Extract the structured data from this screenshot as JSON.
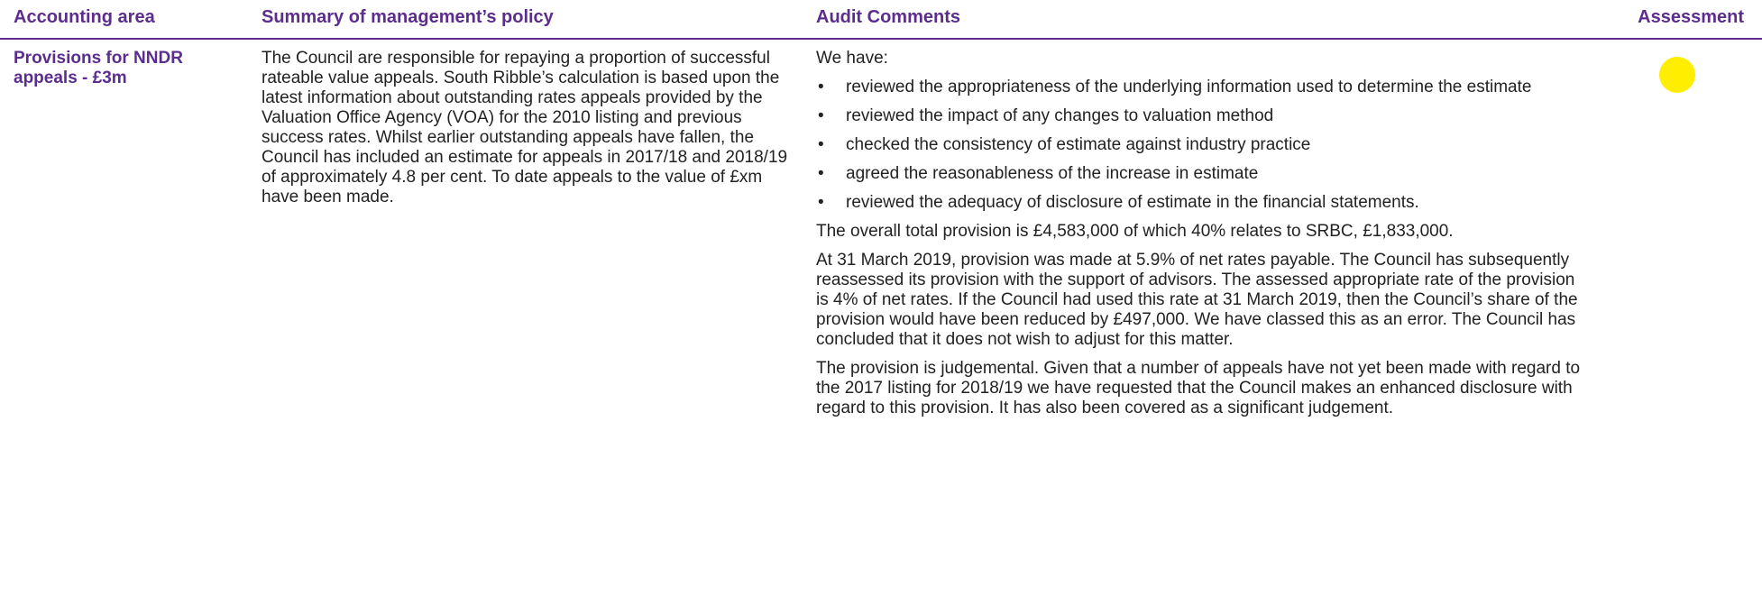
{
  "header": {
    "columns": [
      "Accounting area",
      "Summary of management’s policy",
      "Audit Comments",
      "Assessment"
    ]
  },
  "row": {
    "accounting_area": "Provisions for NNDR appeals - £3m",
    "policy": "The Council are responsible for repaying a proportion of successful rateable value appeals. South Ribble’s calculation is based upon the latest information about outstanding rates appeals provided by the Valuation Office Agency (VOA) for the 2010 listing and previous success rates. Whilst earlier outstanding appeals have fallen, the Council has included an estimate for appeals in 2017/18 and 2018/19 of approximately 4.8 per cent. To date appeals to the value of £xm have been made.",
    "audit_intro": "We have:",
    "audit_bullets": [
      "reviewed the appropriateness of the underlying information used to determine the estimate",
      "reviewed the impact of any changes to valuation method",
      "checked the consistency of estimate against industry practice",
      "agreed the reasonableness of the increase in estimate",
      "reviewed the adequacy of disclosure of estimate in the financial statements."
    ],
    "audit_paragraphs": [
      "The overall total provision is £4,583,000 of which 40% relates to SRBC, £1,833,000.",
      "At 31 March 2019, provision was made at 5.9% of net rates payable. The Council has subsequently reassessed its provision with the support of advisors. The assessed appropriate rate of the provision is 4% of net rates. If the Council had used this rate at 31 March 2019, then the Council’s share of the provision would have been reduced by £497,000. We have classed this as an error. The Council has concluded that it does not wish to adjust for this matter.",
      "The provision is judgemental. Given that a number of appeals have not yet been made with regard to the 2017 listing for 2018/19 we have requested that the Council makes an enhanced disclosure with regard to this provision. It has also been covered as a significant judgement."
    ]
  }
}
